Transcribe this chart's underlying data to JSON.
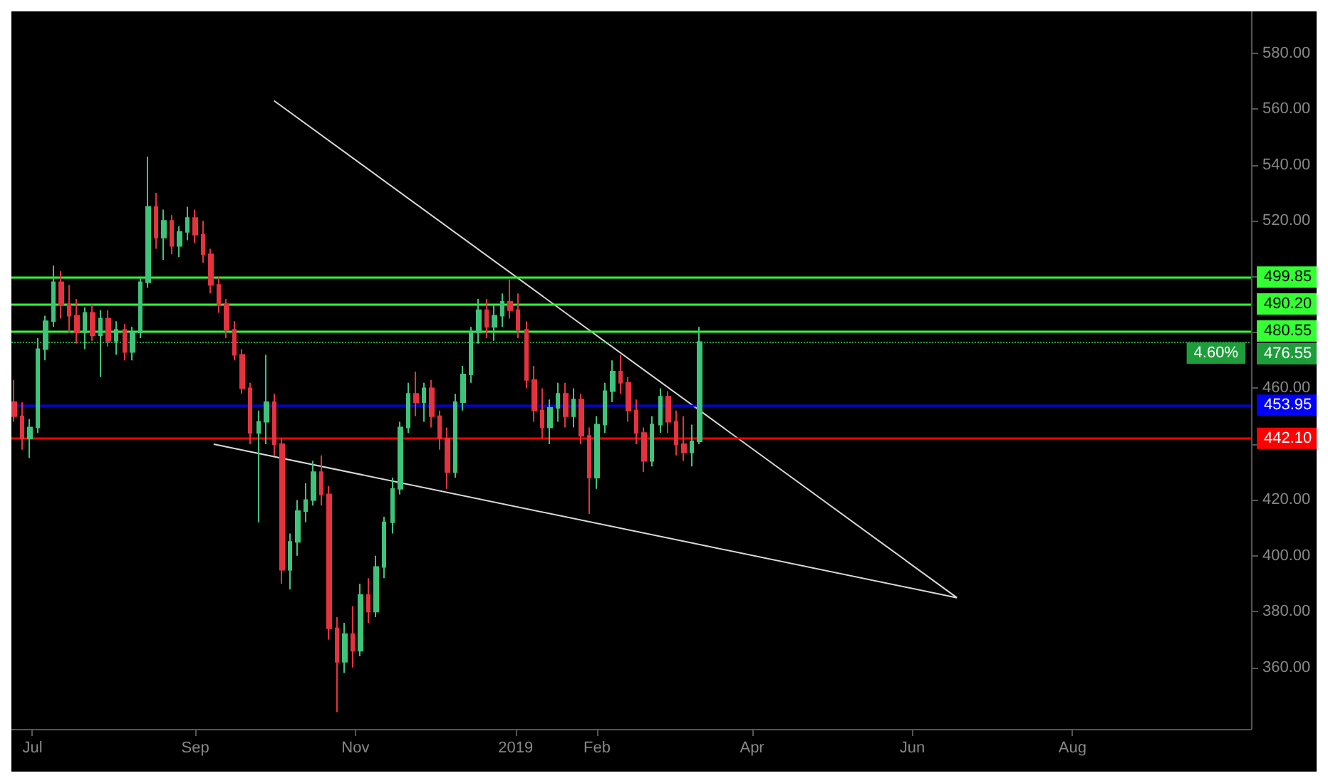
{
  "chart_data": {
    "type": "candlestick",
    "x": [
      "2018-06-24",
      "2018-06-27",
      "2018-06-30",
      "2018-07-03",
      "2018-07-06",
      "2018-07-09",
      "2018-07-12",
      "2018-07-15",
      "2018-07-18",
      "2018-07-21",
      "2018-07-24",
      "2018-07-27",
      "2018-07-30",
      "2018-08-02",
      "2018-08-05",
      "2018-08-08",
      "2018-08-11",
      "2018-08-14",
      "2018-08-17",
      "2018-08-20",
      "2018-08-23",
      "2018-08-26",
      "2018-08-29",
      "2018-09-01",
      "2018-09-04",
      "2018-09-07",
      "2018-09-10",
      "2018-09-13",
      "2018-09-16",
      "2018-09-19",
      "2018-09-22",
      "2018-09-25",
      "2018-09-28",
      "2018-10-01",
      "2018-10-04",
      "2018-10-07",
      "2018-10-10",
      "2018-10-13",
      "2018-10-16",
      "2018-10-19",
      "2018-10-22",
      "2018-10-25",
      "2018-10-28",
      "2018-10-31",
      "2018-11-03",
      "2018-11-06",
      "2018-11-09",
      "2018-11-12",
      "2018-11-15",
      "2018-11-18",
      "2018-11-21",
      "2018-11-24",
      "2018-11-27",
      "2018-11-30",
      "2018-12-03",
      "2018-12-06",
      "2018-12-09",
      "2018-12-12",
      "2018-12-15",
      "2018-12-18",
      "2018-12-21",
      "2018-12-24",
      "2018-12-27",
      "2018-12-30",
      "2019-01-02",
      "2019-01-05",
      "2019-01-08",
      "2019-01-11",
      "2019-01-14",
      "2019-01-17",
      "2019-01-20",
      "2019-01-23",
      "2019-01-26",
      "2019-01-29",
      "2019-02-01",
      "2019-02-04",
      "2019-02-07",
      "2019-02-10",
      "2019-02-13",
      "2019-02-16",
      "2019-02-19",
      "2019-02-22",
      "2019-02-25",
      "2019-02-28",
      "2019-03-03",
      "2019-03-06",
      "2019-03-09",
      "2019-03-12"
    ],
    "ohlc": [
      [
        455,
        463,
        448,
        450
      ],
      [
        450,
        455,
        438,
        442
      ],
      [
        442,
        449,
        435,
        446
      ],
      [
        446,
        478,
        444,
        474
      ],
      [
        474,
        486,
        470,
        484
      ],
      [
        484,
        504,
        482,
        498
      ],
      [
        498,
        502,
        485,
        490
      ],
      [
        490,
        497,
        480,
        486
      ],
      [
        486,
        492,
        476,
        480
      ],
      [
        480,
        489,
        474,
        487
      ],
      [
        487,
        490,
        477,
        479
      ],
      [
        479,
        488,
        464,
        485
      ],
      [
        485,
        488,
        475,
        477
      ],
      [
        477,
        484,
        472,
        481
      ],
      [
        481,
        483,
        470,
        473
      ],
      [
        473,
        482,
        470,
        480
      ],
      [
        480,
        500,
        478,
        498
      ],
      [
        498,
        543,
        496,
        525
      ],
      [
        525,
        530,
        510,
        514
      ],
      [
        514,
        524,
        506,
        520
      ],
      [
        520,
        522,
        508,
        511
      ],
      [
        511,
        518,
        507,
        516
      ],
      [
        516,
        525,
        513,
        521
      ],
      [
        521,
        524,
        512,
        515
      ],
      [
        515,
        520,
        505,
        508
      ],
      [
        508,
        510,
        494,
        497
      ],
      [
        497,
        500,
        487,
        490
      ],
      [
        490,
        492,
        478,
        481
      ],
      [
        481,
        484,
        470,
        472
      ],
      [
        472,
        474,
        458,
        460
      ],
      [
        460,
        462,
        440,
        444
      ],
      [
        444,
        452,
        412,
        448
      ],
      [
        448,
        472,
        440,
        455
      ],
      [
        455,
        458,
        436,
        440
      ],
      [
        440,
        442,
        390,
        395
      ],
      [
        395,
        408,
        388,
        405
      ],
      [
        405,
        420,
        400,
        416
      ],
      [
        416,
        426,
        412,
        420
      ],
      [
        420,
        434,
        418,
        430
      ],
      [
        430,
        436,
        418,
        422
      ],
      [
        422,
        425,
        370,
        374
      ],
      [
        374,
        378,
        344,
        362
      ],
      [
        362,
        376,
        358,
        372
      ],
      [
        372,
        382,
        360,
        366
      ],
      [
        366,
        390,
        364,
        386
      ],
      [
        386,
        392,
        376,
        380
      ],
      [
        380,
        400,
        378,
        396
      ],
      [
        396,
        414,
        392,
        412
      ],
      [
        412,
        428,
        408,
        424
      ],
      [
        424,
        448,
        422,
        446
      ],
      [
        446,
        462,
        444,
        458
      ],
      [
        458,
        466,
        450,
        455
      ],
      [
        455,
        462,
        448,
        460
      ],
      [
        460,
        463,
        446,
        450
      ],
      [
        450,
        452,
        438,
        442
      ],
      [
        442,
        446,
        424,
        430
      ],
      [
        430,
        458,
        428,
        455
      ],
      [
        455,
        468,
        452,
        465
      ],
      [
        465,
        482,
        462,
        480
      ],
      [
        480,
        492,
        476,
        488
      ],
      [
        488,
        492,
        478,
        482
      ],
      [
        482,
        490,
        477,
        486
      ],
      [
        486,
        494,
        482,
        491
      ],
      [
        491,
        499,
        485,
        488
      ],
      [
        488,
        494,
        478,
        481
      ],
      [
        481,
        484,
        460,
        463
      ],
      [
        463,
        468,
        448,
        452
      ],
      [
        452,
        460,
        442,
        446
      ],
      [
        446,
        456,
        440,
        453
      ],
      [
        453,
        462,
        448,
        458
      ],
      [
        458,
        462,
        446,
        450
      ],
      [
        450,
        460,
        446,
        456
      ],
      [
        456,
        458,
        440,
        443
      ],
      [
        443,
        446,
        415,
        428
      ],
      [
        428,
        450,
        424,
        447
      ],
      [
        447,
        462,
        444,
        459
      ],
      [
        459,
        470,
        455,
        466
      ],
      [
        466,
        472,
        458,
        462
      ],
      [
        462,
        464,
        448,
        452
      ],
      [
        452,
        456,
        440,
        444
      ],
      [
        444,
        446,
        430,
        434
      ],
      [
        434,
        450,
        432,
        447
      ],
      [
        447,
        460,
        444,
        457
      ],
      [
        457,
        459,
        444,
        448
      ],
      [
        448,
        452,
        436,
        440
      ],
      [
        440,
        450,
        434,
        437
      ],
      [
        437,
        447,
        432,
        441
      ],
      [
        441,
        482,
        440,
        476.55
      ]
    ],
    "series": [
      {
        "type": "line",
        "color": "#d9d9d9",
        "x": [
          "2018-10-01",
          "2019-06-18"
        ],
        "values": [
          563,
          385
        ]
      },
      {
        "type": "line",
        "color": "#d9d9d9",
        "x": [
          "2018-09-08",
          "2019-06-18"
        ],
        "values": [
          440,
          385
        ]
      }
    ],
    "xlim": [
      "2018-06-23",
      "2019-10-08"
    ],
    "xticks": [
      {
        "value": "2018-07-01",
        "label": "Jul"
      },
      {
        "value": "2018-09-01",
        "label": "Sep"
      },
      {
        "value": "2018-11-01",
        "label": "Nov"
      },
      {
        "value": "2019-01-01",
        "label": "2019"
      },
      {
        "value": "2019-02-01",
        "label": "Feb"
      },
      {
        "value": "2019-04-01",
        "label": "Apr"
      },
      {
        "value": "2019-06-01",
        "label": "Jun"
      },
      {
        "value": "2019-08-01",
        "label": "Aug"
      }
    ],
    "ylim": [
      338,
      595
    ],
    "yticks": [
      {
        "value": 360,
        "label": "360.00"
      },
      {
        "value": 380,
        "label": "380.00"
      },
      {
        "value": 400,
        "label": "400.00"
      },
      {
        "value": 420,
        "label": "420.00"
      },
      {
        "value": 440,
        "label": null
      },
      {
        "value": 460,
        "label": "460.00"
      },
      {
        "value": 480,
        "label": null
      },
      {
        "value": 500,
        "label": null
      },
      {
        "value": 520,
        "label": "520.00"
      },
      {
        "value": 540,
        "label": "540.00"
      },
      {
        "value": 560,
        "label": "560.00"
      },
      {
        "value": 580,
        "label": "580.00"
      }
    ],
    "ref_lines": [
      {
        "axis": "y",
        "value": 499.85,
        "label": "499.85",
        "color": "#33ff33",
        "line_style": "solid"
      },
      {
        "axis": "y",
        "value": 490.2,
        "label": "490.20",
        "color": "#33ff33",
        "line_style": "solid"
      },
      {
        "axis": "y",
        "value": 480.55,
        "label": "480.55",
        "color": "#33ff33",
        "line_style": "solid"
      },
      {
        "axis": "y",
        "value": 476.55,
        "label": "476.55",
        "color": "#1e9e3a",
        "line_style": "dotted"
      },
      {
        "axis": "y",
        "value": 453.95,
        "label": "453.95",
        "color": "#0000ff",
        "line_style": "solid"
      },
      {
        "axis": "y",
        "value": 442.1,
        "label": "442.10",
        "color": "#ff0000",
        "line_style": "solid"
      }
    ],
    "annotations": [
      {
        "text": "4.60%",
        "y": 476.55
      }
    ],
    "grid": false
  }
}
